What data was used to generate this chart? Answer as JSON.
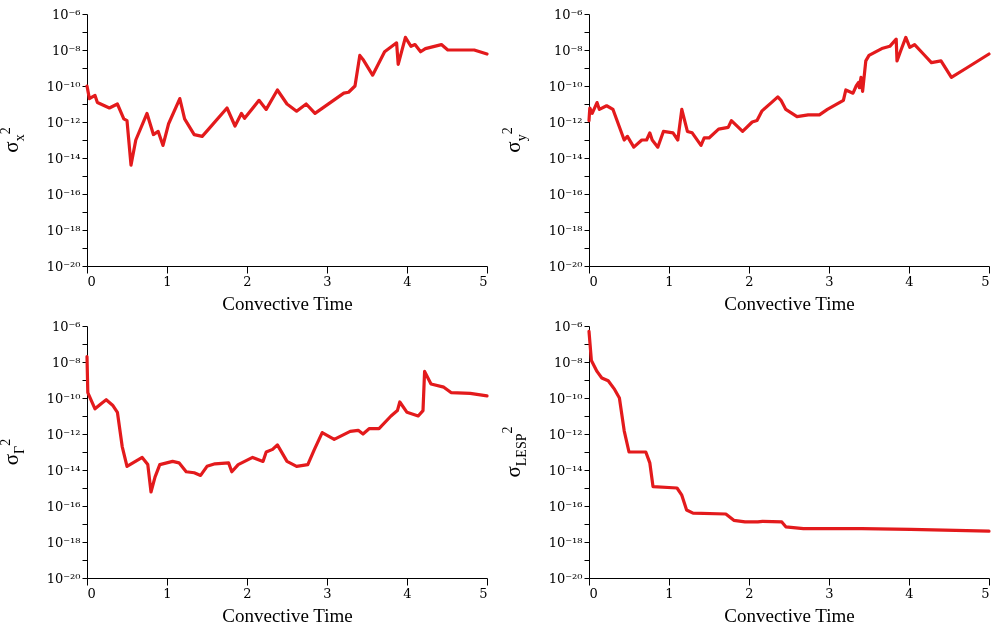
{
  "chart_data": [
    {
      "type": "line",
      "xlabel": "Convective Time",
      "ylabel": "σ$_{x}$$^{2}$",
      "log": "y",
      "grid": false,
      "xlim": [
        0,
        5
      ],
      "xticks": [
        0,
        1,
        2,
        3,
        4,
        5
      ],
      "ylim": [
        1e-20,
        1e-06
      ],
      "yticks": [
        {
          "value": 1e-20,
          "label": "10⁻²⁰"
        },
        {
          "value": 1e-19,
          "label": null
        },
        {
          "value": 1e-18,
          "label": "10⁻¹⁸"
        },
        {
          "value": 1e-17,
          "label": null
        },
        {
          "value": 1e-16,
          "label": "10⁻¹⁶"
        },
        {
          "value": 1e-15,
          "label": null
        },
        {
          "value": 1e-14,
          "label": "10⁻¹⁴"
        },
        {
          "value": 1e-13,
          "label": null
        },
        {
          "value": 1e-12,
          "label": "10⁻¹²"
        },
        {
          "value": 1e-11,
          "label": null
        },
        {
          "value": 1e-10,
          "label": "10⁻¹⁰"
        },
        {
          "value": 1e-09,
          "label": null
        },
        {
          "value": 1e-08,
          "label": "10⁻⁸"
        },
        {
          "value": 1e-07,
          "label": null
        },
        {
          "value": 1e-06,
          "label": "10⁻⁶"
        }
      ],
      "x": [
        0,
        0.03,
        0.1,
        0.13,
        0.28,
        0.38,
        0.46,
        0.5,
        0.55,
        0.61,
        0.75,
        0.83,
        0.89,
        0.95,
        1.02,
        1.16,
        1.22,
        1.34,
        1.44,
        1.52,
        1.75,
        1.85,
        1.93,
        1.97,
        2.15,
        2.24,
        2.38,
        2.5,
        2.62,
        2.74,
        2.85,
        3.21,
        3.27,
        3.35,
        3.41,
        3.45,
        3.57,
        3.72,
        3.87,
        3.89,
        3.98,
        4.05,
        4.1,
        4.17,
        4.23,
        4.43,
        4.51,
        4.84,
        5
      ],
      "series": [
        {
          "color": "#e31a1c",
          "values": [
            1e-10,
            2e-11,
            3e-11,
            1.2e-11,
            6e-12,
            1e-11,
            1.5e-12,
            1.2e-12,
            4e-15,
            1e-13,
            3e-12,
            2e-13,
            3e-13,
            5e-14,
            8e-13,
            2e-11,
            1.5e-12,
            2e-13,
            1.6e-13,
            4e-13,
            6e-12,
            6e-13,
            3e-12,
            1.6e-12,
            1.6e-11,
            5e-12,
            6e-11,
            1e-11,
            4e-12,
            1e-11,
            3e-12,
            4e-11,
            4.5e-11,
            1e-10,
            5e-09,
            3e-09,
            4e-10,
            8e-09,
            2.5e-08,
            1.6e-09,
            5e-08,
            1.6e-08,
            2e-08,
            8e-09,
            1.2e-08,
            2e-08,
            1e-08,
            1e-08,
            6e-09
          ]
        }
      ]
    },
    {
      "type": "line",
      "xlabel": "Convective Time",
      "ylabel": "σ$_{y}$$^{2}$",
      "log": "y",
      "grid": false,
      "xlim": [
        0,
        5
      ],
      "xticks": [
        0,
        1,
        2,
        3,
        4,
        5
      ],
      "ylim": [
        1e-20,
        1e-06
      ],
      "yticks": [
        {
          "value": 1e-20,
          "label": "10⁻²⁰"
        },
        {
          "value": 1e-19,
          "label": null
        },
        {
          "value": 1e-18,
          "label": "10⁻¹⁸"
        },
        {
          "value": 1e-17,
          "label": null
        },
        {
          "value": 1e-16,
          "label": "10⁻¹⁶"
        },
        {
          "value": 1e-15,
          "label": null
        },
        {
          "value": 1e-14,
          "label": "10⁻¹⁴"
        },
        {
          "value": 1e-13,
          "label": null
        },
        {
          "value": 1e-12,
          "label": "10⁻¹²"
        },
        {
          "value": 1e-11,
          "label": null
        },
        {
          "value": 1e-10,
          "label": "10⁻¹⁰"
        },
        {
          "value": 1e-09,
          "label": null
        },
        {
          "value": 1e-08,
          "label": "10⁻⁸"
        },
        {
          "value": 1e-07,
          "label": null
        },
        {
          "value": 1e-06,
          "label": "10⁻⁶"
        }
      ],
      "x": [
        0,
        0.01,
        0.04,
        0.1,
        0.13,
        0.22,
        0.3,
        0.34,
        0.44,
        0.48,
        0.56,
        0.66,
        0.72,
        0.76,
        0.79,
        0.86,
        0.93,
        1.05,
        1.11,
        1.16,
        1.23,
        1.29,
        1.4,
        1.44,
        1.5,
        1.62,
        1.74,
        1.78,
        1.92,
        2.04,
        2.1,
        2.16,
        2.28,
        2.36,
        2.4,
        2.46,
        2.6,
        2.74,
        2.88,
        2.98,
        3.18,
        3.21,
        3.3,
        3.34,
        3.37,
        3.38,
        3.4,
        3.42,
        3.46,
        3.5,
        3.66,
        3.76,
        3.84,
        3.85,
        3.9,
        3.96,
        4.01,
        4.07,
        4.18,
        4.28,
        4.4,
        4.53,
        4.72,
        5
      ],
      "series": [
        {
          "color": "#e31a1c",
          "values": [
            1.2e-12,
            6e-12,
            3e-12,
            1.2e-11,
            5e-12,
            8e-12,
            5e-12,
            1.6e-12,
            1e-13,
            1.6e-13,
            4e-14,
            1e-13,
            1e-13,
            2.5e-13,
            1e-13,
            4e-14,
            3e-13,
            2.5e-13,
            1e-13,
            5e-12,
            3e-13,
            2.5e-13,
            5e-14,
            1.3e-13,
            1.3e-13,
            4e-13,
            5e-13,
            1.2e-12,
            3e-13,
            1e-12,
            1.2e-12,
            4e-12,
            1.2e-11,
            2.5e-11,
            1.6e-11,
            5e-12,
            2e-12,
            2.5e-12,
            2.5e-12,
            5e-12,
            1.6e-11,
            6e-11,
            4e-11,
            1e-10,
            1.6e-10,
            8e-11,
            3e-10,
            5e-11,
            2.5e-09,
            5e-09,
            1.2e-08,
            1.6e-08,
            4e-08,
            2.5e-09,
            1e-08,
            5e-08,
            1.4e-08,
            2e-08,
            6e-09,
            2e-09,
            2.5e-09,
            3e-10,
            1e-09,
            6e-09
          ]
        }
      ]
    },
    {
      "type": "line",
      "xlabel": "Convective Time",
      "ylabel": "σ$_{Γ}$$^{2}$",
      "log": "y",
      "grid": false,
      "xlim": [
        0,
        5
      ],
      "xticks": [
        0,
        1,
        2,
        3,
        4,
        5
      ],
      "ylim": [
        1e-20,
        1e-06
      ],
      "yticks": [
        {
          "value": 1e-20,
          "label": "10⁻²⁰"
        },
        {
          "value": 1e-19,
          "label": null
        },
        {
          "value": 1e-18,
          "label": "10⁻¹⁸"
        },
        {
          "value": 1e-17,
          "label": null
        },
        {
          "value": 1e-16,
          "label": "10⁻¹⁶"
        },
        {
          "value": 1e-15,
          "label": null
        },
        {
          "value": 1e-14,
          "label": "10⁻¹⁴"
        },
        {
          "value": 1e-13,
          "label": null
        },
        {
          "value": 1e-12,
          "label": "10⁻¹²"
        },
        {
          "value": 1e-11,
          "label": null
        },
        {
          "value": 1e-10,
          "label": "10⁻¹⁰"
        },
        {
          "value": 1e-09,
          "label": null
        },
        {
          "value": 1e-08,
          "label": "10⁻⁸"
        },
        {
          "value": 1e-07,
          "label": null
        },
        {
          "value": 1e-06,
          "label": "10⁻⁶"
        }
      ],
      "x": [
        0,
        0.01,
        0.1,
        0.18,
        0.24,
        0.32,
        0.38,
        0.44,
        0.5,
        0.69,
        0.76,
        0.8,
        0.85,
        0.91,
        1.07,
        1.15,
        1.24,
        1.34,
        1.42,
        1.5,
        1.6,
        1.77,
        1.81,
        1.89,
        2.07,
        2.2,
        2.24,
        2.32,
        2.38,
        2.5,
        2.62,
        2.76,
        2.84,
        2.94,
        3.09,
        3.29,
        3.39,
        3.45,
        3.53,
        3.65,
        3.8,
        3.88,
        3.91,
        4,
        4.14,
        4.2,
        4.22,
        4.3,
        4.46,
        4.55,
        4.79,
        5
      ],
      "series": [
        {
          "color": "#e31a1c",
          "values": [
            2e-08,
            2e-10,
            2.5e-11,
            5e-11,
            8e-11,
            4e-11,
            1.6e-11,
            2e-13,
            1.6e-14,
            5e-14,
            2e-14,
            6e-16,
            4e-15,
            2e-14,
            3e-14,
            2.5e-14,
            8e-15,
            7e-15,
            5e-15,
            1.6e-14,
            2.2e-14,
            2.5e-14,
            8e-15,
            2e-14,
            5e-14,
            3e-14,
            1e-13,
            1.4e-13,
            2.5e-13,
            3e-14,
            1.6e-14,
            2e-14,
            1.3e-13,
            1.2e-12,
            5e-13,
            1.4e-12,
            1.6e-12,
            1e-12,
            2e-12,
            2e-12,
            1e-11,
            2e-11,
            6e-11,
            1.6e-11,
            1e-11,
            2e-11,
            3e-09,
            6e-10,
            4e-10,
            2e-10,
            1.8e-10,
            1.3e-10
          ]
        }
      ]
    },
    {
      "type": "line",
      "xlabel": "Convective Time",
      "ylabel": "σ$_{LESP}$$^{2}$",
      "log": "y",
      "grid": false,
      "xlim": [
        0,
        5
      ],
      "xticks": [
        0,
        1,
        2,
        3,
        4,
        5
      ],
      "ylim": [
        1e-20,
        1e-06
      ],
      "yticks": [
        {
          "value": 1e-20,
          "label": "10⁻²⁰"
        },
        {
          "value": 1e-19,
          "label": null
        },
        {
          "value": 1e-18,
          "label": "10⁻¹⁸"
        },
        {
          "value": 1e-17,
          "label": null
        },
        {
          "value": 1e-16,
          "label": "10⁻¹⁶"
        },
        {
          "value": 1e-15,
          "label": null
        },
        {
          "value": 1e-14,
          "label": "10⁻¹⁴"
        },
        {
          "value": 1e-13,
          "label": null
        },
        {
          "value": 1e-12,
          "label": "10⁻¹²"
        },
        {
          "value": 1e-11,
          "label": null
        },
        {
          "value": 1e-10,
          "label": "10⁻¹⁰"
        },
        {
          "value": 1e-09,
          "label": null
        },
        {
          "value": 1e-08,
          "label": "10⁻⁸"
        },
        {
          "value": 1e-07,
          "label": null
        },
        {
          "value": 1e-06,
          "label": "10⁻⁶"
        }
      ],
      "x": [
        0,
        0.03,
        0.1,
        0.16,
        0.24,
        0.32,
        0.38,
        0.44,
        0.5,
        0.71,
        0.76,
        0.8,
        1.1,
        1.16,
        1.22,
        1.3,
        1.71,
        1.81,
        1.95,
        2.11,
        2.17,
        2.41,
        2.46,
        2.68,
        3.41,
        4.02,
        5
      ],
      "series": [
        {
          "color": "#e31a1c",
          "values": [
            5e-07,
            1.2e-08,
            3e-09,
            1.3e-09,
            9e-10,
            3e-10,
            1e-10,
            1.5e-12,
            1e-13,
            1e-13,
            2.5e-14,
            1.2e-15,
            1e-15,
            4e-16,
            6e-17,
            4e-17,
            3.6e-17,
            1.6e-17,
            1.3e-17,
            1.3e-17,
            1.4e-17,
            1.3e-17,
            7e-18,
            5.6e-18,
            5.6e-18,
            5e-18,
            4e-18
          ]
        }
      ]
    }
  ]
}
